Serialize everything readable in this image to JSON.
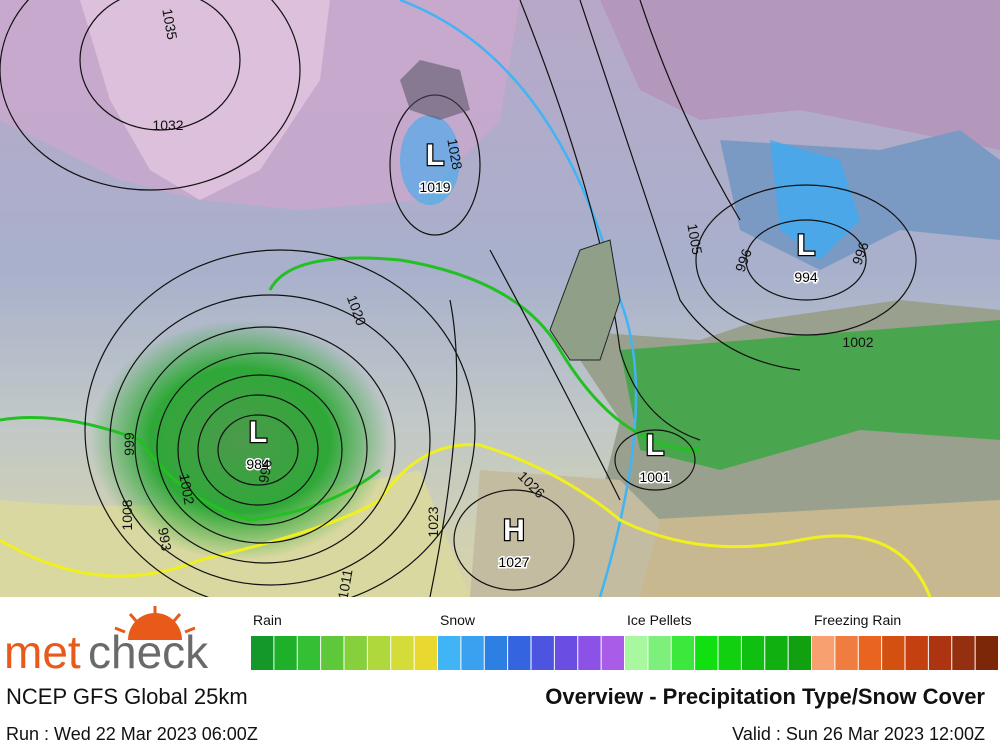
{
  "map": {
    "pressure_centers": [
      {
        "symbol": "L",
        "value": "1019"
      },
      {
        "symbol": "L",
        "value": "994"
      },
      {
        "symbol": "L",
        "value": "984"
      },
      {
        "symbol": "L",
        "value": "1001"
      },
      {
        "symbol": "H",
        "value": "1027"
      }
    ],
    "isobar_labels": [
      "1035",
      "1032",
      "1028",
      "1020",
      "1005",
      "996",
      "996",
      "1002",
      "1026",
      "1023",
      "1011",
      "996",
      "1008",
      "1002",
      "993",
      "999"
    ]
  },
  "legend": {
    "groups": [
      {
        "label": "Rain",
        "colors": [
          "#15982a",
          "#1eb028",
          "#34c034",
          "#5ec83a",
          "#86d03c",
          "#aed83c",
          "#d4dc3a",
          "#e8d830"
        ]
      },
      {
        "label": "Snow",
        "colors": [
          "#40b4f4",
          "#3aa0f0",
          "#2c80e4",
          "#3464e0",
          "#4c54e0",
          "#6a4ee4",
          "#8c52e8",
          "#a85ce8"
        ]
      },
      {
        "label": "Ice Pellets",
        "colors": [
          "#a8f8a0",
          "#7cf07a",
          "#3ce83c",
          "#10e010",
          "#10d010",
          "#10c010",
          "#10b010",
          "#10a010"
        ]
      },
      {
        "label": "Freezing Rain",
        "colors": [
          "#f8a070",
          "#f07c40",
          "#e86420",
          "#d45010",
          "#c44010",
          "#ac3410",
          "#943010",
          "#7c2808"
        ]
      }
    ]
  },
  "footer": {
    "brand_1": "met",
    "brand_2": "check",
    "model": "NCEP GFS Global 25km",
    "title": "Overview - Precipitation Type/Snow Cover",
    "run": "Run : Wed 22 Mar 2023 06:00Z",
    "valid": "Valid : Sun 26 Mar 2023 12:00Z"
  }
}
